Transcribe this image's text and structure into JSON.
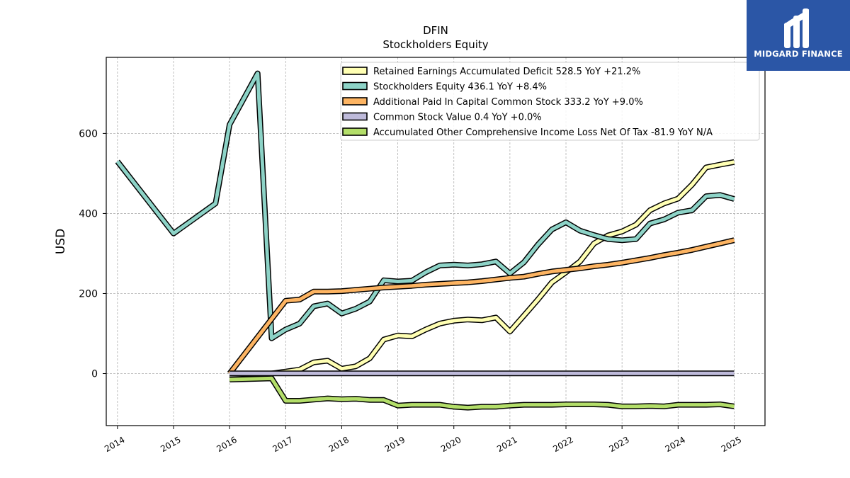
{
  "brand": {
    "name": "MIDGARD FINANCE",
    "logo_color": "#2b56a6"
  },
  "chart_data": {
    "type": "line",
    "title": "DFIN",
    "subtitle": "Stockholders  Equity",
    "ylabel": "USD",
    "xlabel": "",
    "xlim": [
      2013.8,
      2025.55
    ],
    "ylim": [
      -130,
      790
    ],
    "x_ticks": [
      2014,
      2015,
      2016,
      2017,
      2018,
      2019,
      2020,
      2021,
      2022,
      2023,
      2024,
      2025
    ],
    "x_tick_labels": [
      "2014",
      "2015",
      "2016",
      "2017",
      "2018",
      "2019",
      "2020",
      "2021",
      "2022",
      "2023",
      "2024",
      "2025"
    ],
    "y_ticks": [
      0,
      200,
      400,
      600
    ],
    "y_tick_labels": [
      "0",
      "200",
      "400",
      "600"
    ],
    "grid": true,
    "legend_position": "top-right",
    "series": [
      {
        "name": "Retained Earnings Accumulated Deficit  528.5 YoY +21.2%",
        "color": "#ffffb3",
        "points": [
          [
            2016.0,
            0
          ],
          [
            2016.75,
            0
          ],
          [
            2017.0,
            5
          ],
          [
            2017.25,
            10
          ],
          [
            2017.5,
            28
          ],
          [
            2017.75,
            32
          ],
          [
            2018.0,
            12
          ],
          [
            2018.25,
            18
          ],
          [
            2018.5,
            38
          ],
          [
            2018.75,
            85
          ],
          [
            2019.0,
            95
          ],
          [
            2019.25,
            93
          ],
          [
            2019.5,
            110
          ],
          [
            2019.75,
            125
          ],
          [
            2020.0,
            132
          ],
          [
            2020.25,
            135
          ],
          [
            2020.5,
            133
          ],
          [
            2020.75,
            140
          ],
          [
            2021.0,
            105
          ],
          [
            2021.25,
            145
          ],
          [
            2021.5,
            185
          ],
          [
            2021.75,
            228
          ],
          [
            2022.0,
            253
          ],
          [
            2022.25,
            280
          ],
          [
            2022.5,
            325
          ],
          [
            2022.75,
            345
          ],
          [
            2023.0,
            355
          ],
          [
            2023.25,
            372
          ],
          [
            2023.5,
            408
          ],
          [
            2023.75,
            425
          ],
          [
            2024.0,
            437
          ],
          [
            2024.25,
            472
          ],
          [
            2024.5,
            515
          ],
          [
            2024.75,
            522
          ],
          [
            2025.0,
            528.5
          ]
        ]
      },
      {
        "name": "Stockholders Equity  436.1 YoY +8.4%",
        "color": "#8dd3c7",
        "points": [
          [
            2014.0,
            530
          ],
          [
            2015.0,
            350
          ],
          [
            2015.75,
            425
          ],
          [
            2016.0,
            622
          ],
          [
            2016.5,
            750
          ],
          [
            2016.75,
            88
          ],
          [
            2017.0,
            110
          ],
          [
            2017.25,
            125
          ],
          [
            2017.5,
            168
          ],
          [
            2017.75,
            175
          ],
          [
            2018.0,
            150
          ],
          [
            2018.25,
            162
          ],
          [
            2018.5,
            180
          ],
          [
            2018.75,
            233
          ],
          [
            2019.0,
            230
          ],
          [
            2019.25,
            232
          ],
          [
            2019.5,
            253
          ],
          [
            2019.75,
            270
          ],
          [
            2020.0,
            272
          ],
          [
            2020.25,
            270
          ],
          [
            2020.5,
            273
          ],
          [
            2020.75,
            280
          ],
          [
            2021.0,
            250
          ],
          [
            2021.25,
            278
          ],
          [
            2021.5,
            322
          ],
          [
            2021.75,
            360
          ],
          [
            2022.0,
            378
          ],
          [
            2022.25,
            357
          ],
          [
            2022.5,
            346
          ],
          [
            2022.75,
            336
          ],
          [
            2023.0,
            333
          ],
          [
            2023.25,
            336
          ],
          [
            2023.5,
            375
          ],
          [
            2023.75,
            385
          ],
          [
            2024.0,
            402
          ],
          [
            2024.25,
            408
          ],
          [
            2024.5,
            443
          ],
          [
            2024.75,
            446
          ],
          [
            2025.0,
            436.1
          ]
        ]
      },
      {
        "name": "Additional Paid In Capital Common Stock  333.2 YoY +9.0%",
        "color": "#fdb462",
        "points": [
          [
            2016.0,
            0
          ],
          [
            2017.0,
            182
          ],
          [
            2017.25,
            185
          ],
          [
            2017.5,
            205
          ],
          [
            2017.75,
            205
          ],
          [
            2018.0,
            206
          ],
          [
            2018.25,
            209
          ],
          [
            2018.5,
            212
          ],
          [
            2018.75,
            215
          ],
          [
            2019.0,
            217
          ],
          [
            2019.25,
            219
          ],
          [
            2019.5,
            222
          ],
          [
            2019.75,
            224
          ],
          [
            2020.0,
            226
          ],
          [
            2020.25,
            228
          ],
          [
            2020.5,
            231
          ],
          [
            2020.75,
            235
          ],
          [
            2021.0,
            239
          ],
          [
            2021.25,
            242
          ],
          [
            2021.5,
            249
          ],
          [
            2021.75,
            255
          ],
          [
            2022.0,
            259
          ],
          [
            2022.25,
            263
          ],
          [
            2022.5,
            268
          ],
          [
            2022.75,
            272
          ],
          [
            2023.0,
            277
          ],
          [
            2023.25,
            283
          ],
          [
            2023.5,
            289
          ],
          [
            2023.75,
            296
          ],
          [
            2024.0,
            302
          ],
          [
            2024.25,
            309
          ],
          [
            2024.5,
            317
          ],
          [
            2024.75,
            325
          ],
          [
            2025.0,
            333.2
          ]
        ]
      },
      {
        "name": "Common Stock Value  0.4 YoY +0.0%",
        "color": "#bebada",
        "points": [
          [
            2016.0,
            0.4
          ],
          [
            2025.0,
            0.4
          ]
        ]
      },
      {
        "name": "Accumulated Other Comprehensive Income Loss Net Of Tax  -81.9 YoY N/A",
        "color": "#b3de69",
        "points": [
          [
            2016.0,
            -15
          ],
          [
            2016.75,
            -12
          ],
          [
            2017.0,
            -68
          ],
          [
            2017.25,
            -68
          ],
          [
            2017.5,
            -65
          ],
          [
            2017.75,
            -62
          ],
          [
            2018.0,
            -64
          ],
          [
            2018.25,
            -63
          ],
          [
            2018.5,
            -66
          ],
          [
            2018.75,
            -66
          ],
          [
            2019.0,
            -80
          ],
          [
            2019.25,
            -78
          ],
          [
            2019.5,
            -78
          ],
          [
            2019.75,
            -78
          ],
          [
            2020.0,
            -83
          ],
          [
            2020.25,
            -85
          ],
          [
            2020.5,
            -83
          ],
          [
            2020.75,
            -83
          ],
          [
            2021.0,
            -80
          ],
          [
            2021.25,
            -78
          ],
          [
            2021.5,
            -78
          ],
          [
            2021.75,
            -78
          ],
          [
            2022.0,
            -77
          ],
          [
            2022.25,
            -77
          ],
          [
            2022.5,
            -77
          ],
          [
            2022.75,
            -78
          ],
          [
            2023.0,
            -82
          ],
          [
            2023.25,
            -82
          ],
          [
            2023.5,
            -81
          ],
          [
            2023.75,
            -82
          ],
          [
            2024.0,
            -78
          ],
          [
            2024.25,
            -78
          ],
          [
            2024.5,
            -78
          ],
          [
            2024.75,
            -77
          ],
          [
            2025.0,
            -81.9
          ]
        ]
      }
    ]
  }
}
